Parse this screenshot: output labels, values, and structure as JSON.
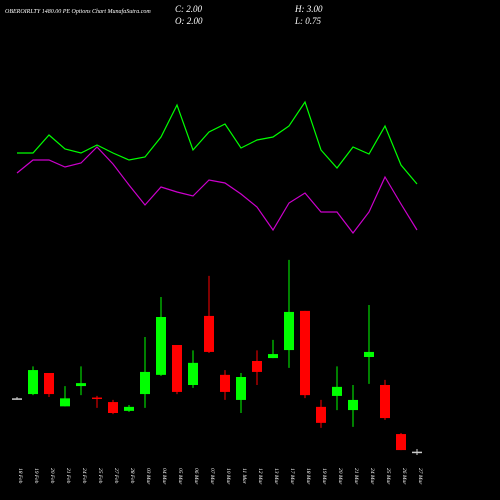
{
  "chart_data": {
    "type": "candlestick",
    "title": "OBEROIRLTY 1480.00 PE Options Chart MunafaSutra.com",
    "info": [
      "C: 2.00",
      "O: 2.00",
      "H: 3.00",
      "L: 0.75"
    ],
    "x": [
      "18 Feb",
      "19 Feb",
      "20 Feb",
      "21 Feb",
      "24 Feb",
      "25 Feb",
      "27 Feb",
      "28 Feb",
      "03 Mar",
      "04 Mar",
      "05 Mar",
      "06 Mar",
      "07 Mar",
      "10 Mar",
      "11 Mar",
      "12 Mar",
      "13 Mar",
      "17 Mar",
      "18 Mar",
      "19 Mar",
      "20 Mar",
      "21 Mar",
      "24 Mar",
      "25 Mar",
      "26 Mar",
      "27 Mar"
    ],
    "open": [
      22,
      23.6,
      31.5,
      19,
      26.6,
      22.3,
      20.6,
      17.3,
      23.6,
      30.8,
      42,
      27,
      52.9,
      30.8,
      21.4,
      36,
      37.1,
      40.1,
      54.8,
      18.8,
      22.9,
      17.6,
      37.5,
      27,
      8.6,
      2
    ],
    "high": [
      22.5,
      34,
      31.5,
      26.6,
      34,
      22.9,
      21.4,
      19.5,
      45,
      60,
      42,
      40,
      67.9,
      32.6,
      31.5,
      40,
      43.9,
      73.9,
      54.8,
      21.4,
      34,
      27,
      57,
      28.9,
      9,
      3
    ],
    "low": [
      21.5,
      23.2,
      22.5,
      19,
      23.2,
      18.4,
      16.1,
      16.9,
      18.4,
      30.4,
      23.6,
      25.9,
      39,
      21.4,
      16.5,
      27,
      37.1,
      33.4,
      22.1,
      10.9,
      17.6,
      11.3,
      27.4,
      13.9,
      2.6,
      0.75
    ],
    "close": [
      22,
      32.6,
      23.6,
      22,
      27.7,
      22,
      16.5,
      18.8,
      31.9,
      52.5,
      24.4,
      35.3,
      39.4,
      24.4,
      30,
      31.9,
      38.6,
      54.4,
      23.2,
      12.8,
      26.3,
      21.4,
      39.4,
      14.6,
      2.6,
      2
    ],
    "up_color": "#00ff00",
    "down_color": "#ff0000",
    "flat_color": "#cccccc",
    "ylim": [
      0,
      75
    ],
    "lines": [
      {
        "color": "#00ff00",
        "values": [
          48.5,
          48.5,
          57.5,
          50.5,
          48.5,
          52.5,
          48.5,
          45,
          46.5,
          56.5,
          72.5,
          50,
          59,
          63,
          51,
          55,
          56.5,
          62,
          74,
          50,
          41,
          51.5,
          48,
          62,
          42.5,
          33
        ]
      },
      {
        "color": "#cc00cc",
        "values": [
          38.5,
          45,
          45,
          41.5,
          43.5,
          51.5,
          43,
          32.5,
          22.5,
          31.5,
          29,
          27,
          35,
          33.5,
          28,
          21.5,
          10,
          23.5,
          28.5,
          19,
          19,
          8.5,
          19,
          36.5,
          23,
          10
        ]
      }
    ],
    "line_ylim": [
      0,
      100
    ]
  }
}
